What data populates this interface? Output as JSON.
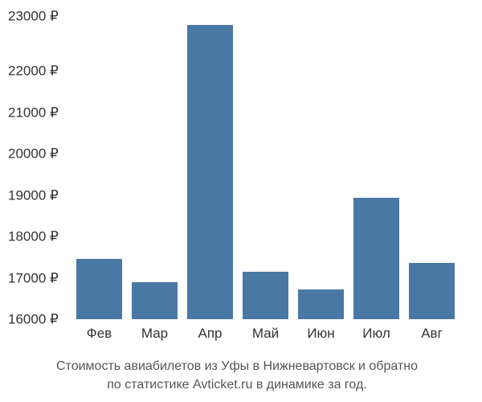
{
  "chart": {
    "type": "bar",
    "categories": [
      "Фев",
      "Мар",
      "Апр",
      "Май",
      "Июн",
      "Июл",
      "Авг"
    ],
    "values": [
      17400,
      16850,
      22800,
      17100,
      16700,
      18800,
      17300
    ],
    "bar_color": "#4a78a4",
    "ylim": [
      16000,
      23000
    ],
    "ytick_step": 1000,
    "yticks": [
      "23000 ₽",
      "22000 ₽",
      "21000 ₽",
      "20000 ₽",
      "19000 ₽",
      "18000 ₽",
      "17000 ₽",
      "16000 ₽"
    ],
    "currency_suffix": " ₽",
    "background_color": "#ffffff",
    "text_color": "#333333",
    "caption_color": "#555555",
    "tick_fontsize": 17,
    "caption_fontsize": 16,
    "bar_gap_ratio": 0.12
  },
  "caption": {
    "line1": "Стоимость авиабилетов из Уфы в Нижневартовск и обратно",
    "line2": "по статистике Avticket.ru в динамике за год."
  }
}
